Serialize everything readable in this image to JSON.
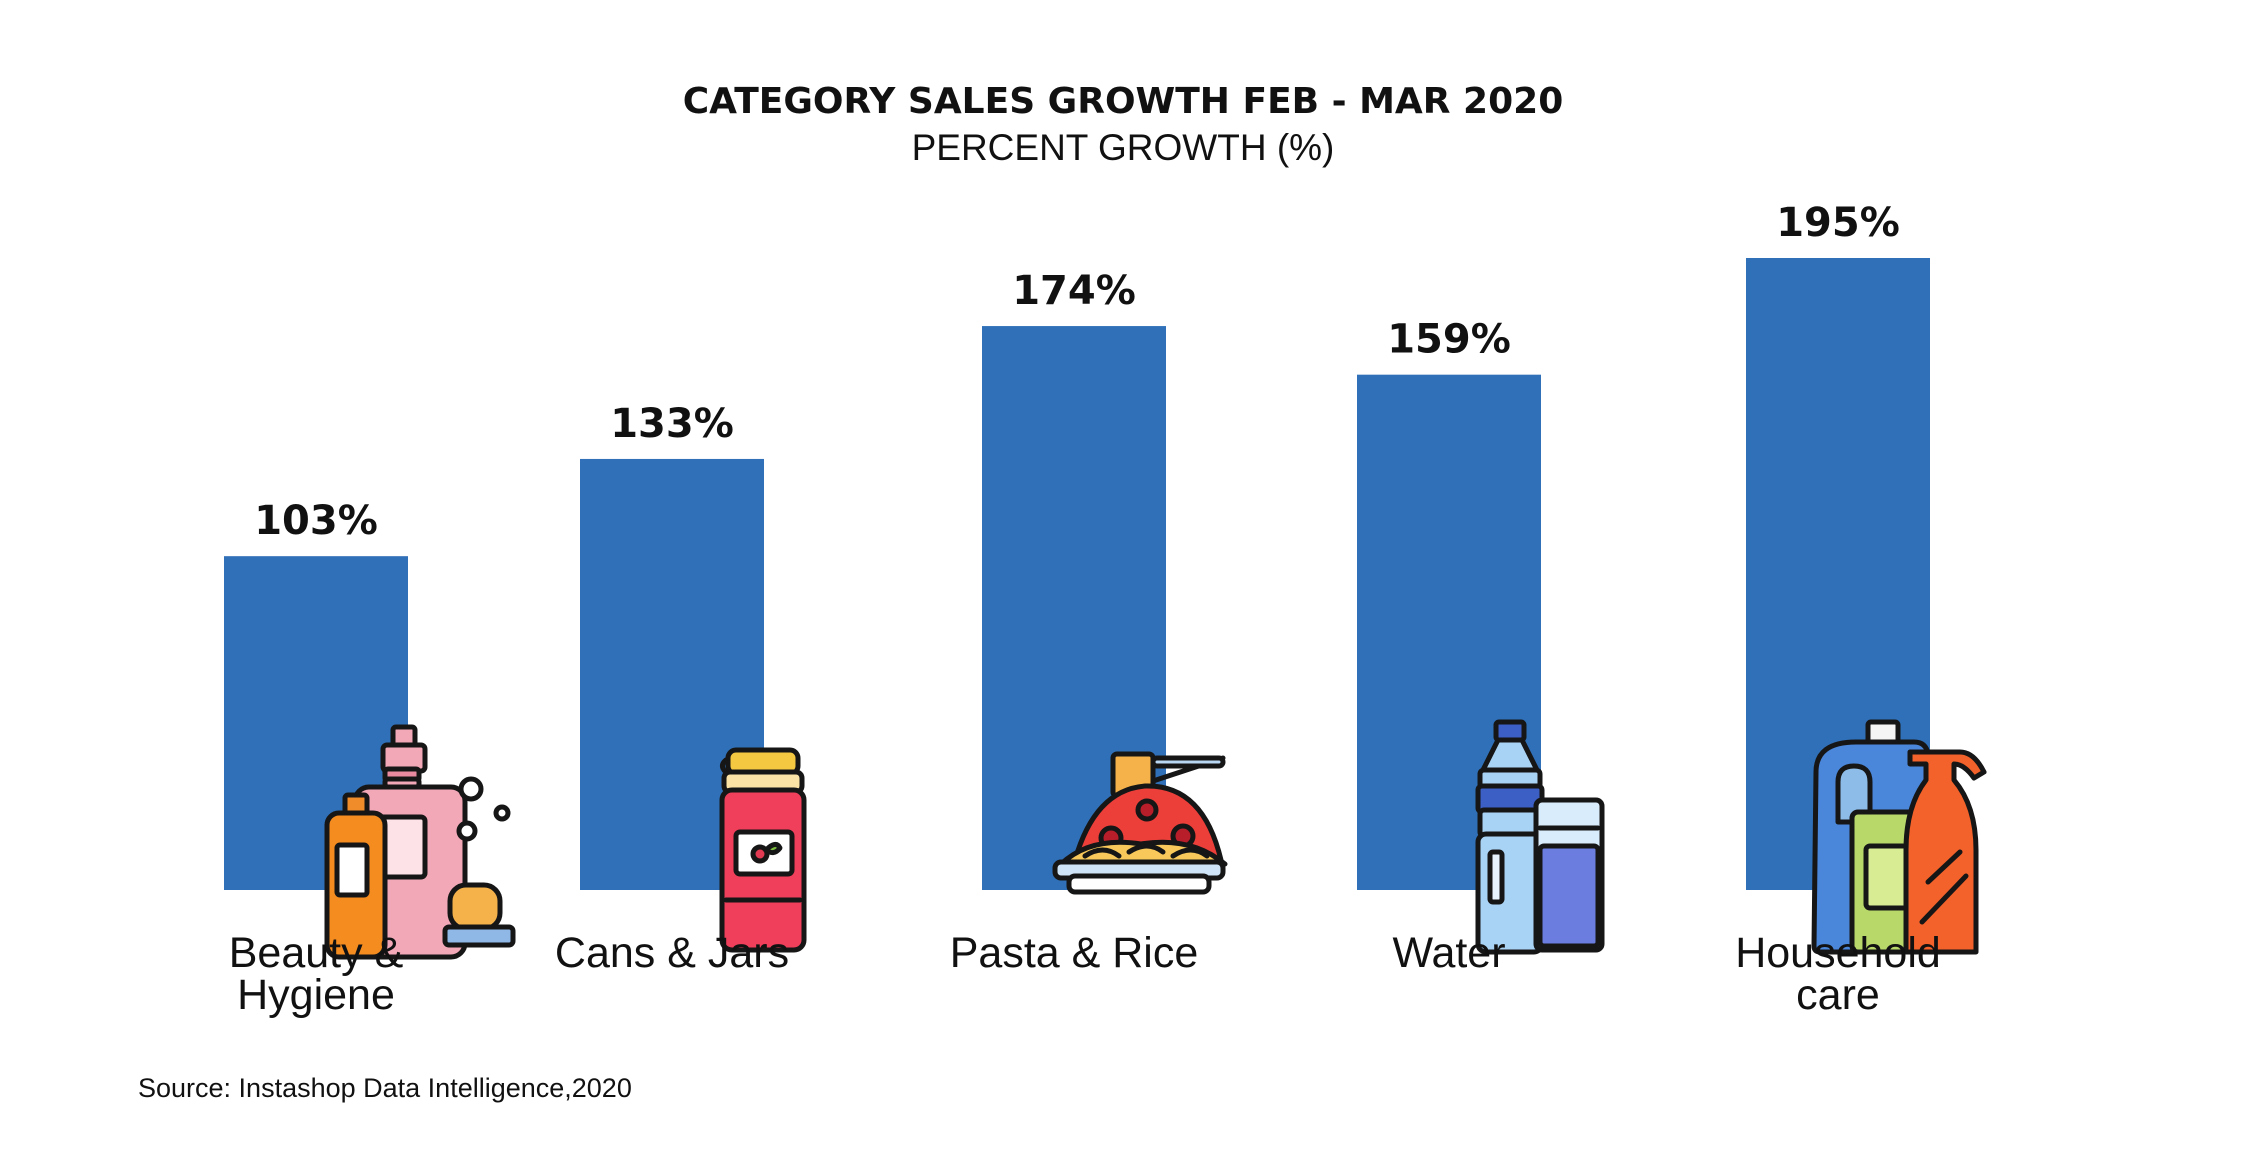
{
  "chart_data": {
    "type": "bar",
    "title": "CATEGORY SALES GROWTH FEB - MAR 2020",
    "subtitle": "PERCENT GROWTH (%)",
    "categories": [
      "Beauty & Hygiene",
      "Cans & Jars",
      "Pasta & Rice",
      "Water",
      "Household care"
    ],
    "category_lines": [
      [
        "Beauty &",
        "Hygiene"
      ],
      [
        "Cans & Jars"
      ],
      [
        "Pasta & Rice"
      ],
      [
        "Water"
      ],
      [
        "Household",
        "care"
      ]
    ],
    "values": [
      103,
      133,
      174,
      159,
      195
    ],
    "value_labels": [
      "103%",
      "133%",
      "174%",
      "159%",
      "195%"
    ],
    "icons": [
      "beauty-products-icon",
      "jam-jar-icon",
      "spaghetti-plate-icon",
      "water-bottle-glass-icon",
      "cleaning-products-icon"
    ],
    "ylim": [
      0,
      195
    ],
    "grid": false,
    "bar_color": "#3070b8"
  },
  "source": "Source: Instashop Data Intelligence,2020"
}
